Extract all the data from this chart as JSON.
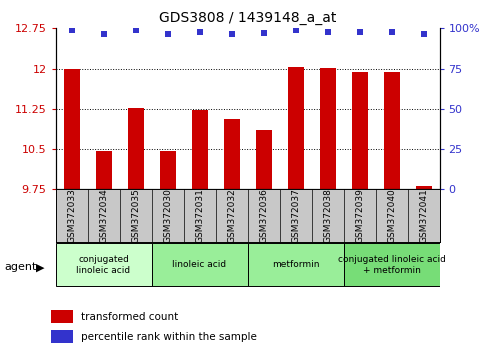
{
  "title": "GDS3808 / 1439148_a_at",
  "samples": [
    "GSM372033",
    "GSM372034",
    "GSM372035",
    "GSM372030",
    "GSM372031",
    "GSM372032",
    "GSM372036",
    "GSM372037",
    "GSM372038",
    "GSM372039",
    "GSM372040",
    "GSM372041"
  ],
  "bar_values": [
    12.0,
    10.47,
    11.27,
    10.47,
    11.22,
    11.07,
    10.85,
    12.03,
    12.02,
    11.93,
    11.93,
    9.82
  ],
  "percentile_y_scaled": [
    12.72,
    12.64,
    12.72,
    12.64,
    12.69,
    12.64,
    12.66,
    12.72,
    12.69,
    12.69,
    12.69,
    12.64
  ],
  "ymin": 9.75,
  "ymax": 12.75,
  "yticks": [
    9.75,
    10.5,
    11.25,
    12.0,
    12.75
  ],
  "ytick_labels": [
    "9.75",
    "10.5",
    "11.25",
    "12",
    "12.75"
  ],
  "right_ytick_percs": [
    0,
    25,
    50,
    75,
    100
  ],
  "right_ytick_labels": [
    "0",
    "25",
    "50",
    "75",
    "100%"
  ],
  "bar_color": "#cc0000",
  "dot_color": "#3333cc",
  "left_tick_color": "#cc0000",
  "right_tick_color": "#3333cc",
  "groups": [
    {
      "label": "conjugated\nlinoleic acid",
      "start": 0,
      "end": 3,
      "color": "#ccffcc"
    },
    {
      "label": "linoleic acid",
      "start": 3,
      "end": 6,
      "color": "#99ee99"
    },
    {
      "label": "metformin",
      "start": 6,
      "end": 9,
      "color": "#99ee99"
    },
    {
      "label": "conjugated linoleic acid\n+ metformin",
      "start": 9,
      "end": 12,
      "color": "#77dd77"
    }
  ],
  "bg_color": "#c8c8c8",
  "plot_bg": "#ffffff",
  "bar_width": 0.5,
  "grid_dotted_at": [
    10.5,
    11.25,
    12.0
  ]
}
